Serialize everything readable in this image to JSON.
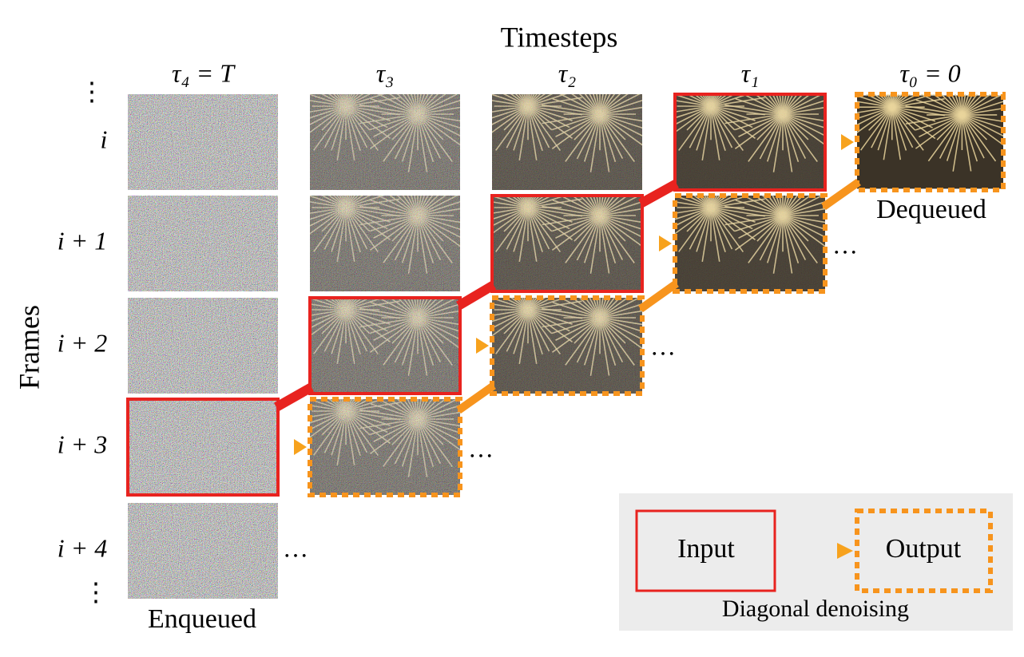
{
  "header": {
    "x_title": "Timesteps",
    "y_title": "Frames"
  },
  "columns": [
    "τ₄ = T",
    "τ₃",
    "τ₂",
    "τ₁",
    "τ₀ = 0"
  ],
  "rows": [
    "i",
    "i + 1",
    "i + 2",
    "i + 3",
    "i + 4"
  ],
  "vdots": "⋮",
  "ellipsis": "…",
  "enqueued": "Enqueued",
  "dequeued": "Dequeued",
  "legend": {
    "input": "Input",
    "output": "Output",
    "caption": "Diagonal denoising"
  }
}
